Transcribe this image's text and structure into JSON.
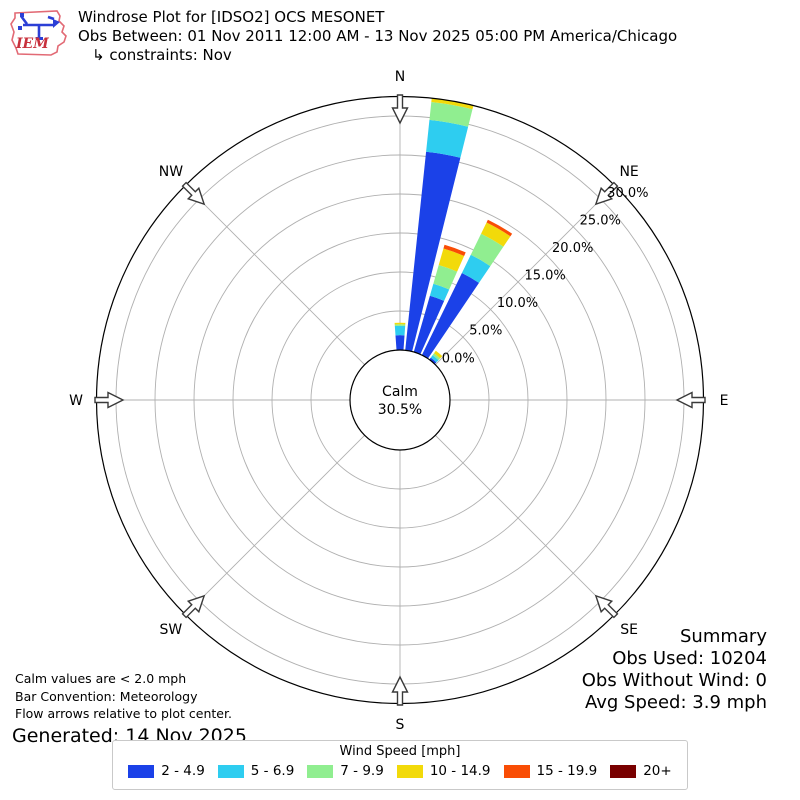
{
  "header": {
    "logo_text": "IEM",
    "title": "Windrose Plot for [IDSO2] OCS MESONET",
    "subtitle": "Obs Between: 01 Nov 2011 12:00 AM - 13 Nov 2025 05:00 PM America/Chicago",
    "constraints": "↳ constraints: Nov"
  },
  "calm": {
    "label": "Calm",
    "value": "30.5%"
  },
  "notes": {
    "lines": [
      "Calm values are < 2.0 mph",
      "Bar Convention: Meteorology",
      "Flow arrows relative to plot center."
    ],
    "generated": "Generated: 14 Nov 2025"
  },
  "summary": {
    "lines": [
      "Summary",
      "Obs Used: 10204",
      "Obs Without Wind: 0",
      "Avg Speed: 3.9 mph"
    ]
  },
  "legend": {
    "title": "Wind Speed [mph]"
  },
  "colors": {
    "grid": "#b0b0b0",
    "axis": "#000000",
    "arrow_stroke": "#3a3a3a"
  },
  "chart_data": {
    "type": "windrose",
    "title": "Windrose Plot for [IDSO2] OCS MESONET",
    "units": "mph",
    "calm_pct": 30.5,
    "rmax_pct": 32.5,
    "ring_ticks_pct": [
      0,
      5,
      10,
      15,
      20,
      25,
      30
    ],
    "ring_tick_labels": [
      "0.0%",
      "5.0%",
      "10.0%",
      "15.0%",
      "20.0%",
      "25.0%",
      "30.0%"
    ],
    "tick_label_angle_deg": 45,
    "sector_width_deg": 10,
    "bar_half_width_deg": 4,
    "compass": [
      {
        "label": "N",
        "deg": 0
      },
      {
        "label": "NE",
        "deg": 45
      },
      {
        "label": "E",
        "deg": 90
      },
      {
        "label": "SE",
        "deg": 135
      },
      {
        "label": "S",
        "deg": 180
      },
      {
        "label": "SW",
        "deg": 225
      },
      {
        "label": "W",
        "deg": 270
      },
      {
        "label": "NW",
        "deg": 315
      }
    ],
    "speed_bins": [
      {
        "label": "2 - 4.9",
        "color": "#1b41e8"
      },
      {
        "label": "5 - 6.9",
        "color": "#2ecdf0"
      },
      {
        "label": "7 - 9.9",
        "color": "#90ee90"
      },
      {
        "label": "10 - 14.9",
        "color": "#f2da0a"
      },
      {
        "label": "15 - 19.9",
        "color": "#f94d05"
      },
      {
        "label": "20+",
        "color": "#790000"
      }
    ],
    "directions": [
      {
        "dir_deg": 0,
        "values_pct": [
          1.9,
          1.2,
          0.2,
          0.2,
          0,
          0
        ]
      },
      {
        "dir_deg": 10,
        "values_pct": [
          25.6,
          4.1,
          2.3,
          0.5,
          0,
          0
        ]
      },
      {
        "dir_deg": 20,
        "values_pct": [
          7.5,
          1.6,
          2.5,
          2.2,
          0.5,
          0
        ]
      },
      {
        "dir_deg": 30,
        "values_pct": [
          11.7,
          2.6,
          3.0,
          1.6,
          0.4,
          0
        ]
      },
      {
        "dir_deg": 40,
        "values_pct": [
          0.3,
          0.4,
          0.3,
          0.4,
          0,
          0
        ]
      }
    ]
  }
}
